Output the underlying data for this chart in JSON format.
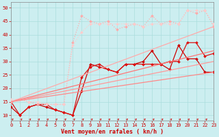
{
  "xlabel": "Vent moyen/en rafales ( kn/h )",
  "xlim": [
    0,
    23
  ],
  "ylim": [
    8,
    52
  ],
  "xticks": [
    0,
    1,
    2,
    3,
    4,
    5,
    6,
    7,
    8,
    9,
    10,
    11,
    12,
    13,
    14,
    15,
    16,
    17,
    18,
    19,
    20,
    21,
    22,
    23
  ],
  "yticks": [
    10,
    15,
    20,
    25,
    30,
    35,
    40,
    45,
    50
  ],
  "background_color": "#cceef0",
  "grid_color": "#aadddd",
  "lines": [
    {
      "x": [
        0,
        1,
        2,
        3,
        4,
        5,
        6,
        7,
        8,
        9,
        10,
        11,
        12,
        13,
        14,
        15,
        16,
        17,
        18,
        19,
        20,
        21,
        22,
        23
      ],
      "y": [
        13,
        10,
        13,
        14,
        13,
        12,
        11,
        10,
        19,
        29,
        28,
        27,
        26,
        29,
        29,
        30,
        34,
        29,
        27,
        36,
        31,
        31,
        26,
        26
      ],
      "color": "#cc0000",
      "linewidth": 0.9,
      "marker": "D",
      "markersize": 2.0,
      "linestyle": "-"
    },
    {
      "x": [
        0,
        1,
        2,
        3,
        4,
        5,
        6,
        7,
        8,
        9,
        10,
        11,
        12,
        13,
        14,
        15,
        16,
        17,
        18,
        19,
        20,
        21,
        22,
        23
      ],
      "y": [
        15,
        10,
        13,
        14,
        14,
        12,
        11,
        10,
        24,
        28,
        29,
        27,
        26,
        29,
        29,
        29,
        29,
        29,
        30,
        30,
        37,
        37,
        32,
        33
      ],
      "color": "#dd1111",
      "linewidth": 0.9,
      "marker": "D",
      "markersize": 2.0,
      "linestyle": "-"
    },
    {
      "x": [
        0,
        1,
        2,
        3,
        4,
        5,
        6,
        7,
        8,
        9,
        10,
        11,
        12,
        13,
        14,
        15,
        16,
        17,
        18,
        19,
        20,
        21,
        22,
        23
      ],
      "y": [
        15,
        16,
        15,
        14,
        14,
        14,
        14,
        37,
        47,
        45,
        44,
        45,
        42,
        43,
        44,
        43,
        47,
        44,
        45,
        44,
        49,
        48,
        49,
        43
      ],
      "color": "#ffaaaa",
      "linewidth": 0.9,
      "marker": "D",
      "markersize": 2.0,
      "linestyle": ":"
    },
    {
      "x": [
        0,
        1,
        2,
        3,
        4,
        5,
        6,
        7,
        8,
        9,
        10,
        11,
        12,
        13,
        14,
        15,
        16,
        17,
        18,
        19,
        20,
        21,
        22,
        23
      ],
      "y": [
        16,
        16,
        15,
        15,
        14,
        14,
        14,
        36,
        41,
        44,
        44,
        44,
        44,
        44,
        44,
        43,
        44,
        44,
        44,
        44,
        49,
        49,
        49,
        44
      ],
      "color": "#ffcccc",
      "linewidth": 0.9,
      "marker": "D",
      "markersize": 2.0,
      "linestyle": ":"
    },
    {
      "x": [
        0,
        23
      ],
      "y": [
        15,
        26
      ],
      "color": "#ff8888",
      "linewidth": 0.9,
      "marker": null,
      "linestyle": "-"
    },
    {
      "x": [
        0,
        23
      ],
      "y": [
        15,
        43
      ],
      "color": "#ffaaaa",
      "linewidth": 0.9,
      "marker": null,
      "linestyle": "-"
    },
    {
      "x": [
        0,
        23
      ],
      "y": [
        15,
        34
      ],
      "color": "#ff7777",
      "linewidth": 0.9,
      "marker": null,
      "linestyle": "-"
    },
    {
      "x": [
        0,
        23
      ],
      "y": [
        15,
        30
      ],
      "color": "#ff9999",
      "linewidth": 0.9,
      "marker": null,
      "linestyle": "-"
    }
  ]
}
